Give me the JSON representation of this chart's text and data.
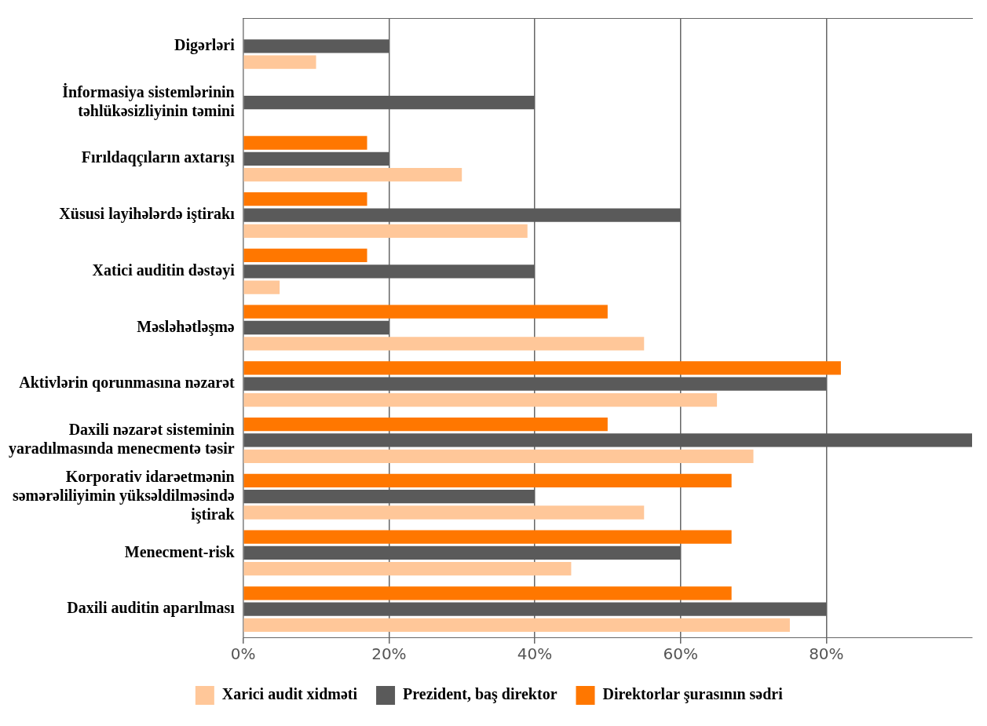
{
  "chart_data": {
    "type": "bar",
    "orientation": "horizontal",
    "categories": [
      "Digərləri",
      "İnformasiya sistemlərinin təhlükəsizliyinin təmini",
      "Fırıldaqçıların axtarışı",
      "Xüsusi layihələrdə iştirakı",
      "Xatici auditin dəstəyi",
      "Məsləhətləşmə",
      "Aktivlərin qorunmasına nəzarət",
      "Daxili nəzarət sisteminin yaradılmasında menecmentə təsir",
      "Korporativ idarəetmənin səmərəliliyimin yüksəldilməsində iştirak",
      "Menecment-risk",
      "Daxili auditin aparılması"
    ],
    "series": [
      {
        "name": "Direktorlar şurasının sədri",
        "color": "#ff7700",
        "values": [
          null,
          null,
          17,
          17,
          17,
          50,
          82,
          50,
          67,
          67,
          67
        ]
      },
      {
        "name": "Prezident, baş direktor",
        "color": "#5a5a5a",
        "values": [
          20,
          40,
          20,
          60,
          40,
          20,
          80,
          100,
          40,
          60,
          80
        ]
      },
      {
        "name": "Xarici audit xidməti",
        "color": "#ffc799",
        "values": [
          10,
          null,
          30,
          39,
          5,
          55,
          65,
          70,
          55,
          45,
          75
        ]
      }
    ],
    "xlim": [
      0,
      100
    ],
    "xticks": [
      {
        "value": 0,
        "label": "0%"
      },
      {
        "value": 20,
        "label": "20%"
      },
      {
        "value": 40,
        "label": "40%"
      },
      {
        "value": 60,
        "label": "60%"
      },
      {
        "value": 80,
        "label": "80%"
      }
    ],
    "grid": "x",
    "legend": "bottom"
  }
}
